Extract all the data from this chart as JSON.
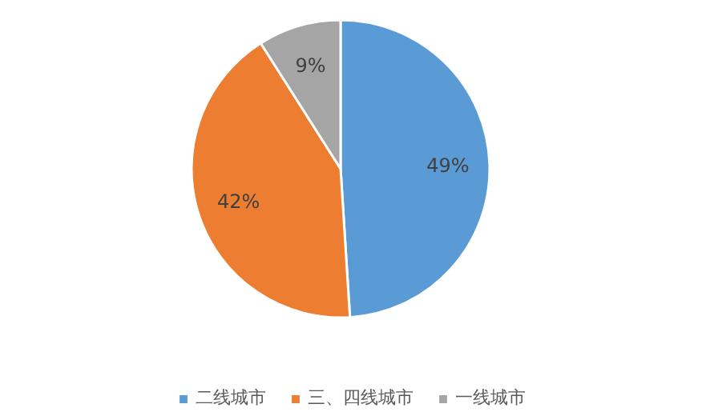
{
  "chart_data": {
    "type": "pie",
    "categories": [
      "二线城市",
      "三、四线城市",
      "一线城市"
    ],
    "values": [
      49,
      42,
      9
    ],
    "colors": [
      "#5b9bd5",
      "#ed7d31",
      "#a5a5a5"
    ],
    "value_labels": [
      "49%",
      "42%",
      "9%"
    ],
    "legend": "bottom"
  }
}
